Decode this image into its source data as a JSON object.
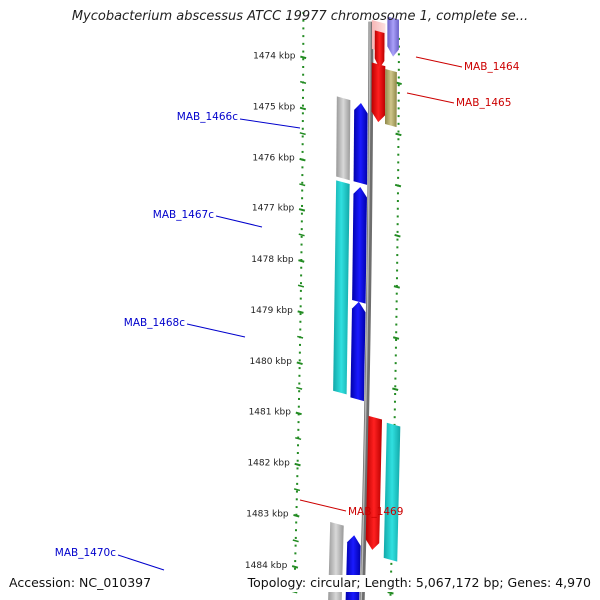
{
  "header": {
    "title": "Mycobacterium abscessus ATCC 19977 chromosome 1, complete se..."
  },
  "footer": {
    "accession": "Accession: NC_010397",
    "summary": "Topology: circular; Length: 5,067,172 bp; Genes: 4,970"
  },
  "colors": {
    "backbone": "#808080",
    "tick": "#228b22",
    "reverse_label": "#0000cc",
    "forward_label": "#cc0000",
    "gene_blue": "#0000ee",
    "gene_cyan": "#20cccc",
    "gene_red": "#ee0000",
    "gene_gray": "#b0b0b0",
    "gene_olive": "#b0a860",
    "gene_lavender": "#8a80e0"
  },
  "ruler": {
    "unit": "kbp",
    "ticks": [
      "1474 kbp",
      "1475 kbp",
      "1476 kbp",
      "1477 kbp",
      "1478 kbp",
      "1479 kbp",
      "1480 kbp",
      "1481 kbp",
      "1482 kbp",
      "1483 kbp",
      "1484 kbp"
    ]
  },
  "genes": [
    {
      "label": "MAB_1464",
      "strand": "+"
    },
    {
      "label": "MAB_1465",
      "strand": "+"
    },
    {
      "label": "MAB_1466c",
      "strand": "-"
    },
    {
      "label": "MAB_1467c",
      "strand": "-"
    },
    {
      "label": "MAB_1468c",
      "strand": "-"
    },
    {
      "label": "MAB_1469",
      "strand": "+"
    },
    {
      "label": "MAB_1470c",
      "strand": "-"
    }
  ]
}
